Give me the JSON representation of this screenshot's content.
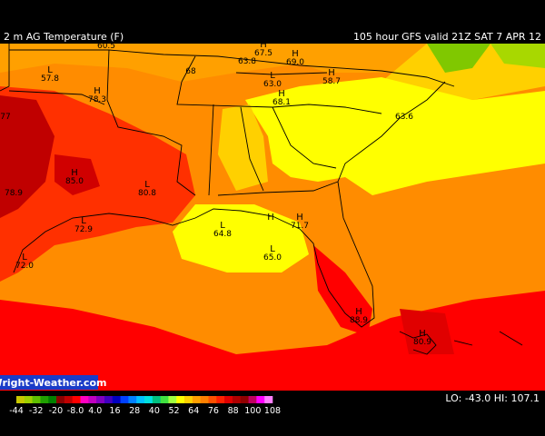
{
  "header": {
    "title": "2 m AG Temperature (F)",
    "run": "105 hour GFS valid 21Z SAT  7 APR 12"
  },
  "map_labels": [
    {
      "value": "60.5"
    },
    {
      "marker": "L",
      "value": "57.8"
    },
    {
      "value": "68"
    },
    {
      "marker": "H",
      "value": "67.5"
    },
    {
      "value": "63.8"
    },
    {
      "marker": "H",
      "value": "69.0"
    },
    {
      "marker": "L",
      "value": "63.0"
    },
    {
      "marker": "H",
      "value": "58.7"
    },
    {
      "marker": "H",
      "value": "78.3"
    },
    {
      "value": "77"
    },
    {
      "marker": "H",
      "value": "68.1"
    },
    {
      "value": "63.6"
    },
    {
      "marker": "H",
      "value": "85.0"
    },
    {
      "value": "78.9"
    },
    {
      "marker": "L",
      "value": "80.8"
    },
    {
      "marker": "L",
      "value": "72.9"
    },
    {
      "marker": "L",
      "value": "64.8"
    },
    {
      "marker": "H"
    },
    {
      "marker": "H",
      "value": "71.7"
    },
    {
      "marker": "L",
      "value": "65.0"
    },
    {
      "marker": "L",
      "value": "72.0"
    },
    {
      "marker": "H",
      "value": "88.9"
    },
    {
      "marker": "H",
      "value": "80.9"
    }
  ],
  "credit": "Wright-Weather.com",
  "colorbar": {
    "labels": [
      "-44",
      "-32",
      "-20",
      "-8.0",
      "4.0",
      "16",
      "28",
      "40",
      "52",
      "64",
      "76",
      "88",
      "100",
      "108"
    ],
    "colors": [
      "#c8c800",
      "#a0d000",
      "#60c000",
      "#20a000",
      "#008000",
      "#8a0000",
      "#c00000",
      "#ff0000",
      "#ff00c0",
      "#c000c0",
      "#8000c0",
      "#4000c0",
      "#0000c0",
      "#0040ff",
      "#0080ff",
      "#00c0ff",
      "#00e0e0",
      "#00c080",
      "#40e040",
      "#a0ff40",
      "#ffff00",
      "#ffd000",
      "#ffa000",
      "#ff8000",
      "#ff5000",
      "#ff2000",
      "#e00000",
      "#b00000",
      "#900000",
      "#c00060",
      "#ff00ff",
      "#ff80ff"
    ]
  },
  "extremes": "LO: -43.0  HI: 107.1"
}
